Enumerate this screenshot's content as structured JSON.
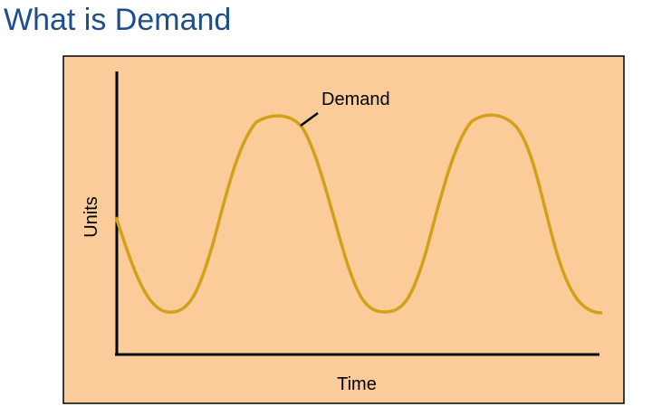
{
  "slide": {
    "title": "What is Demand"
  },
  "diagram": {
    "background_color": "#fccb9a",
    "curve_color": "#d4a017",
    "x_axis_label": "Time",
    "y_axis_label": "Units",
    "curve_label": "Demand"
  }
}
